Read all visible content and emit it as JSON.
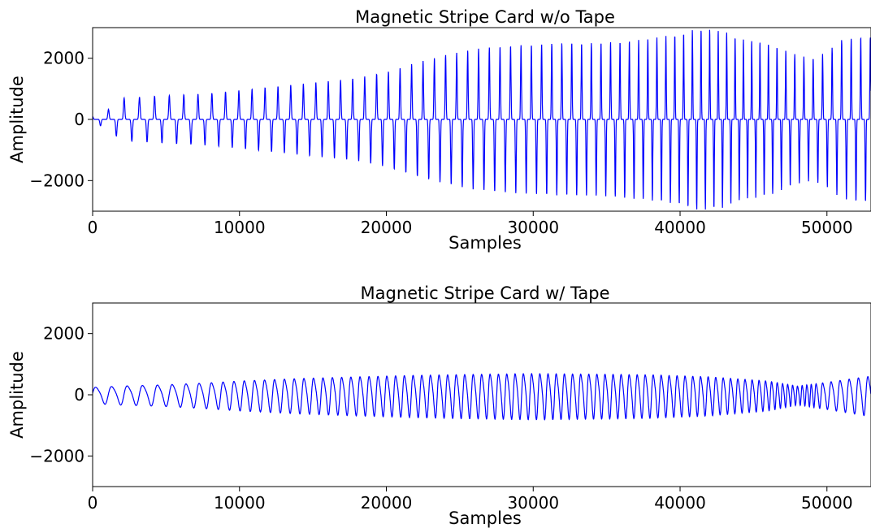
{
  "chart_data": [
    {
      "type": "line",
      "title": "Magnetic Stripe Card w/o Tape",
      "xlabel": "Samples",
      "ylabel": "Amplitude",
      "xlim": [
        0,
        53000
      ],
      "ylim": [
        -3000,
        3000
      ],
      "xticks": [
        0,
        10000,
        20000,
        30000,
        40000,
        50000
      ],
      "xtick_labels": [
        "0",
        "10000",
        "20000",
        "30000",
        "40000",
        "50000"
      ],
      "yticks": [
        2000,
        0,
        -2000
      ],
      "ytick_labels": [
        "2000",
        "0",
        "−2000"
      ],
      "grid": false,
      "series": [
        {
          "color": "#0000ff",
          "envelope_x": [
            0,
            1000,
            2000,
            4000,
            6000,
            8000,
            10000,
            12000,
            14000,
            16000,
            18000,
            20000,
            22000,
            24000,
            26000,
            28000,
            30000,
            32000,
            34000,
            36000,
            38000,
            40000,
            41000,
            42000,
            43000,
            44000,
            46000,
            48000,
            49000,
            50000,
            51000,
            52000,
            53000
          ],
          "envelope_y": [
            100,
            300,
            700,
            750,
            800,
            850,
            950,
            1050,
            1150,
            1250,
            1350,
            1550,
            1850,
            2100,
            2300,
            2400,
            2450,
            2500,
            2500,
            2550,
            2650,
            2800,
            2950,
            2950,
            2900,
            2650,
            2500,
            2100,
            2000,
            2200,
            2600,
            2700,
            2700
          ],
          "pulse_period_x": [
            0,
            5000,
            10000,
            20000,
            30000,
            40000,
            45000,
            48000,
            50000,
            53000
          ],
          "pulse_period": [
            1100,
            1000,
            900,
            800,
            700,
            600,
            560,
            620,
            650,
            650
          ]
        }
      ]
    },
    {
      "type": "line",
      "title": "Magnetic Stripe Card w/ Tape",
      "xlabel": "Samples",
      "ylabel": "Amplitude",
      "xlim": [
        0,
        53000
      ],
      "ylim": [
        -3000,
        3000
      ],
      "xticks": [
        0,
        10000,
        20000,
        30000,
        40000,
        50000
      ],
      "xtick_labels": [
        "0",
        "10000",
        "20000",
        "30000",
        "40000",
        "50000"
      ],
      "yticks": [
        2000,
        0,
        -2000
      ],
      "ytick_labels": [
        "2000",
        "0",
        "−2000"
      ],
      "grid": false,
      "series": [
        {
          "color": "#0000ff",
          "envelope_x": [
            0,
            2000,
            5000,
            8000,
            10000,
            14000,
            18000,
            22000,
            26000,
            30000,
            34000,
            38000,
            42000,
            46000,
            48000,
            50000,
            53000
          ],
          "envelope_y": [
            300,
            350,
            400,
            480,
            550,
            650,
            720,
            780,
            820,
            850,
            830,
            800,
            720,
            550,
            350,
            500,
            750
          ],
          "pulse_period_x": [
            0,
            5000,
            10000,
            20000,
            30000,
            40000,
            45000,
            47000,
            49000,
            50000,
            53000
          ],
          "pulse_period": [
            1100,
            1000,
            700,
            600,
            560,
            540,
            480,
            350,
            300,
            600,
            650
          ]
        }
      ]
    }
  ]
}
